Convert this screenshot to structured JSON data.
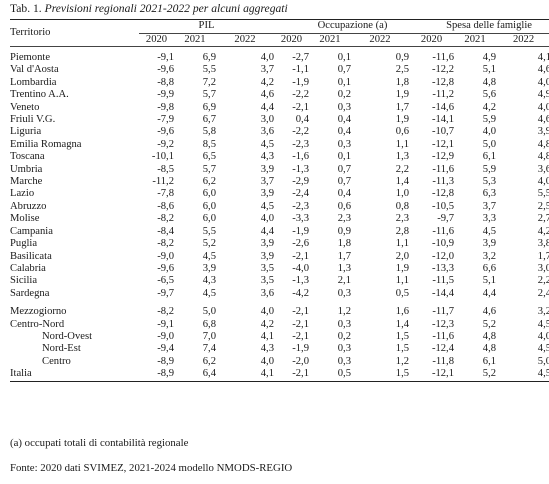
{
  "title": {
    "prefix": "Tab. 1.",
    "text": "Previsioni regionali 2021-2022 per alcuni aggregati"
  },
  "headers": {
    "territorio": "Territorio",
    "groups": [
      "PIL",
      "Occupazione (a)",
      "Spesa delle famiglie"
    ],
    "years": [
      "2020",
      "2021",
      "2022"
    ]
  },
  "rows": [
    {
      "name": "Piemonte",
      "v": [
        "-9,1",
        "6,9",
        "4,0",
        "-2,7",
        "0,1",
        "0,9",
        "-11,6",
        "4,9",
        "4,1"
      ]
    },
    {
      "name": "Val d'Aosta",
      "v": [
        "-9,6",
        "5,5",
        "3,7",
        "-1,1",
        "0,7",
        "2,5",
        "-12,2",
        "5,1",
        "4,6"
      ]
    },
    {
      "name": "Lombardia",
      "v": [
        "-8,8",
        "7,2",
        "4,2",
        "-1,9",
        "0,1",
        "1,8",
        "-12,8",
        "4,8",
        "4,0"
      ]
    },
    {
      "name": "Trentino A.A.",
      "v": [
        "-9,9",
        "5,7",
        "4,6",
        "-2,2",
        "0,2",
        "1,9",
        "-11,2",
        "5,6",
        "4,9"
      ]
    },
    {
      "name": "Veneto",
      "v": [
        "-9,8",
        "6,9",
        "4,4",
        "-2,1",
        "0,3",
        "1,7",
        "-14,6",
        "4,2",
        "4,0"
      ]
    },
    {
      "name": "Friuli V.G.",
      "v": [
        "-7,9",
        "6,7",
        "3,0",
        "0,4",
        "0,4",
        "1,9",
        "-14,1",
        "5,9",
        "4,6"
      ]
    },
    {
      "name": "Liguria",
      "v": [
        "-9,6",
        "5,8",
        "3,6",
        "-2,2",
        "0,4",
        "0,6",
        "-10,7",
        "4,0",
        "3,9"
      ]
    },
    {
      "name": "Emilia Romagna",
      "v": [
        "-9,2",
        "8,5",
        "4,5",
        "-2,3",
        "0,3",
        "1,1",
        "-12,1",
        "5,0",
        "4,8"
      ]
    },
    {
      "name": "Toscana",
      "v": [
        "-10,1",
        "6,5",
        "4,3",
        "-1,6",
        "0,1",
        "1,3",
        "-12,9",
        "6,1",
        "4,8"
      ]
    },
    {
      "name": "Umbria",
      "v": [
        "-8,5",
        "5,7",
        "3,9",
        "-1,3",
        "0,7",
        "2,2",
        "-11,6",
        "5,9",
        "3,6"
      ]
    },
    {
      "name": "Marche",
      "v": [
        "-11,2",
        "6,2",
        "3,7",
        "-2,9",
        "0,7",
        "1,4",
        "-11,3",
        "5,3",
        "4,0"
      ]
    },
    {
      "name": "Lazio",
      "v": [
        "-7,8",
        "6,0",
        "3,9",
        "-2,4",
        "0,4",
        "1,0",
        "-12,8",
        "6,3",
        "5,5"
      ]
    },
    {
      "name": "Abruzzo",
      "v": [
        "-8,6",
        "6,0",
        "4,5",
        "-2,3",
        "0,6",
        "0,8",
        "-10,5",
        "3,7",
        "2,5"
      ]
    },
    {
      "name": "Molise",
      "v": [
        "-8,2",
        "6,0",
        "4,0",
        "-3,3",
        "2,3",
        "2,3",
        "-9,7",
        "3,3",
        "2,7"
      ]
    },
    {
      "name": "Campania",
      "v": [
        "-8,4",
        "5,5",
        "4,4",
        "-1,9",
        "0,9",
        "2,8",
        "-11,6",
        "4,5",
        "4,2"
      ]
    },
    {
      "name": "Puglia",
      "v": [
        "-8,2",
        "5,2",
        "3,9",
        "-2,6",
        "1,8",
        "1,1",
        "-10,9",
        "3,9",
        "3,8"
      ]
    },
    {
      "name": "Basilicata",
      "v": [
        "-9,0",
        "4,5",
        "3,9",
        "-2,1",
        "1,7",
        "2,0",
        "-12,0",
        "3,2",
        "1,7"
      ]
    },
    {
      "name": "Calabria",
      "v": [
        "-9,6",
        "3,9",
        "3,5",
        "-4,0",
        "1,3",
        "1,9",
        "-13,3",
        "6,6",
        "3,0"
      ]
    },
    {
      "name": "Sicilia",
      "v": [
        "-6,5",
        "4,3",
        "3,5",
        "-1,3",
        "2,1",
        "1,1",
        "-11,5",
        "5,1",
        "2,2"
      ]
    },
    {
      "name": "Sardegna",
      "v": [
        "-9,7",
        "4,5",
        "3,6",
        "-4,2",
        "0,3",
        "0,5",
        "-14,4",
        "4,4",
        "2,4"
      ]
    }
  ],
  "aggregates": [
    {
      "name": "Mezzogiorno",
      "indent": false,
      "v": [
        "-8,2",
        "5,0",
        "4,0",
        "-2,1",
        "1,2",
        "1,6",
        "-11,7",
        "4,6",
        "3,2"
      ]
    },
    {
      "name": "Centro-Nord",
      "indent": false,
      "v": [
        "-9,1",
        "6,8",
        "4,2",
        "-2,1",
        "0,3",
        "1,4",
        "-12,3",
        "5,2",
        "4,5"
      ]
    },
    {
      "name": "Nord-Ovest",
      "indent": true,
      "v": [
        "-9,0",
        "7,0",
        "4,1",
        "-2,1",
        "0,2",
        "1,5",
        "-11,6",
        "4,8",
        "4,0"
      ]
    },
    {
      "name": "Nord-Est",
      "indent": true,
      "v": [
        "-9,4",
        "7,4",
        "4,3",
        "-1,9",
        "0,3",
        "1,5",
        "-12,4",
        "4,8",
        "4,5"
      ]
    },
    {
      "name": "Centro",
      "indent": true,
      "v": [
        "-8,9",
        "6,2",
        "4,0",
        "-2,0",
        "0,3",
        "1,2",
        "-11,8",
        "6,1",
        "5,0"
      ]
    },
    {
      "name": "Italia",
      "indent": false,
      "v": [
        "-8,9",
        "6,4",
        "4,1",
        "-2,1",
        "0,5",
        "1,5",
        "-12,1",
        "5,2",
        "4,5"
      ]
    }
  ],
  "note": "(a) occupati totali di contabilità regionale",
  "source": "Fonte: 2020 dati SVIMEZ, 2021-2024 modello NMODS-REGIO"
}
